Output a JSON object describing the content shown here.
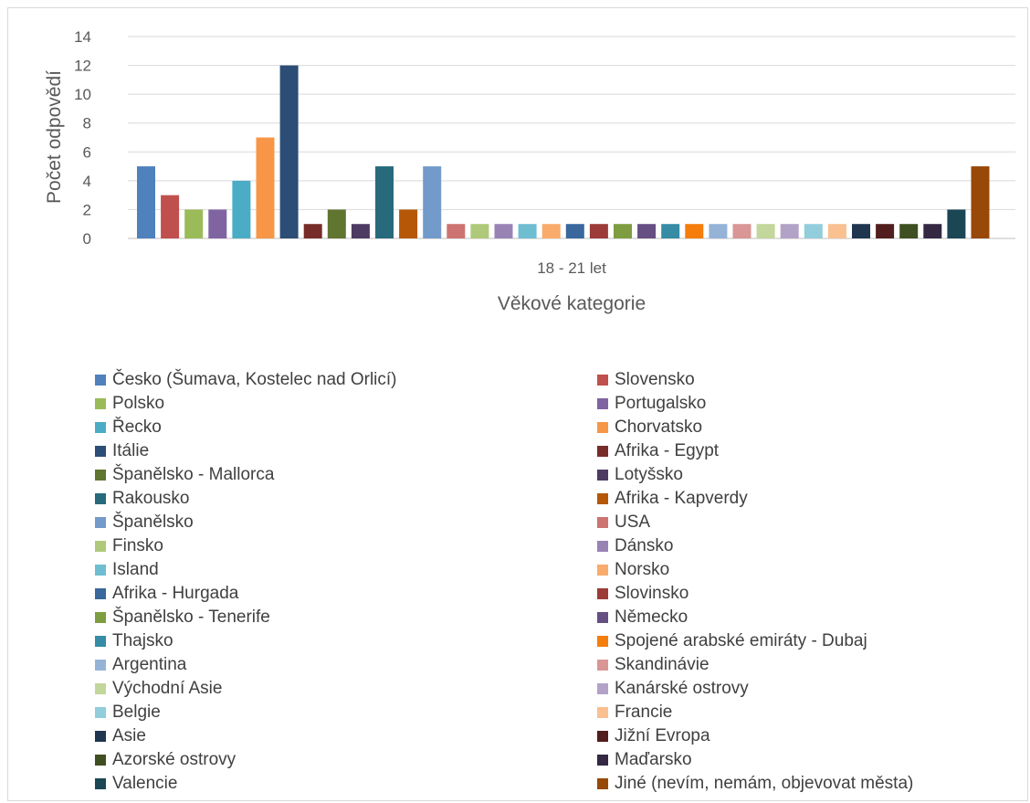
{
  "chart_data": {
    "type": "bar",
    "categories": [
      "18 - 21 let"
    ],
    "xlabel": "Věkové kategorie",
    "ylabel": "Počet odpovědí",
    "ylim": [
      0,
      14
    ],
    "yticks": [
      0,
      2,
      4,
      6,
      8,
      10,
      12,
      14
    ],
    "grid": true,
    "legend_position": "bottom",
    "series": [
      {
        "name": "Česko (Šumava, Kostelec nad Orlicí)",
        "values": [
          5
        ],
        "color": "#4f81bd"
      },
      {
        "name": "Slovensko",
        "values": [
          3
        ],
        "color": "#c0504d"
      },
      {
        "name": "Polsko",
        "values": [
          2
        ],
        "color": "#9bbb59"
      },
      {
        "name": "Portugalsko",
        "values": [
          2
        ],
        "color": "#8064a2"
      },
      {
        "name": "Řecko",
        "values": [
          4
        ],
        "color": "#4bacc6"
      },
      {
        "name": "Chorvatsko",
        "values": [
          7
        ],
        "color": "#f79646"
      },
      {
        "name": "Itálie",
        "values": [
          12
        ],
        "color": "#2c4d75"
      },
      {
        "name": "Afrika - Egypt",
        "values": [
          1
        ],
        "color": "#772c2a"
      },
      {
        "name": "Španělsko - Mallorca",
        "values": [
          2
        ],
        "color": "#5f7530"
      },
      {
        "name": "Lotyšsko",
        "values": [
          1
        ],
        "color": "#4d3b62"
      },
      {
        "name": "Rakousko",
        "values": [
          5
        ],
        "color": "#276a7c"
      },
      {
        "name": "Afrika - Kapverdy",
        "values": [
          2
        ],
        "color": "#b65708"
      },
      {
        "name": "Španělsko",
        "values": [
          5
        ],
        "color": "#729aca"
      },
      {
        "name": "USA",
        "values": [
          1
        ],
        "color": "#cd7371"
      },
      {
        "name": "Finsko",
        "values": [
          1
        ],
        "color": "#afc97a"
      },
      {
        "name": "Dánsko",
        "values": [
          1
        ],
        "color": "#9983b5"
      },
      {
        "name": "Island",
        "values": [
          1
        ],
        "color": "#6fbdd1"
      },
      {
        "name": "Norsko",
        "values": [
          1
        ],
        "color": "#f9ab6b"
      },
      {
        "name": "Afrika - Hurgada",
        "values": [
          1
        ],
        "color": "#3a679c"
      },
      {
        "name": "Slovinsko",
        "values": [
          1
        ],
        "color": "#9d3b38"
      },
      {
        "name": "Španělsko - Tenerife",
        "values": [
          1
        ],
        "color": "#7e9c40"
      },
      {
        "name": "Německo",
        "values": [
          1
        ],
        "color": "#664f83"
      },
      {
        "name": "Thajsko",
        "values": [
          1
        ],
        "color": "#358ca4"
      },
      {
        "name": "Spojené arabské emiráty - Dubaj",
        "values": [
          1
        ],
        "color": "#f47d0c"
      },
      {
        "name": "Argentina",
        "values": [
          1
        ],
        "color": "#95b3d7"
      },
      {
        "name": "Skandinávie",
        "values": [
          1
        ],
        "color": "#d99694"
      },
      {
        "name": "Východní Asie",
        "values": [
          1
        ],
        "color": "#c3d69b"
      },
      {
        "name": "Kanárské ostrovy",
        "values": [
          1
        ],
        "color": "#b3a2c7"
      },
      {
        "name": "Belgie",
        "values": [
          1
        ],
        "color": "#92cddc"
      },
      {
        "name": "Francie",
        "values": [
          1
        ],
        "color": "#fac090"
      },
      {
        "name": "Asie",
        "values": [
          1
        ],
        "color": "#1f3550"
      },
      {
        "name": "Jižní Evropa",
        "values": [
          1
        ],
        "color": "#511e1d"
      },
      {
        "name": "Azorské ostrovy",
        "values": [
          1
        ],
        "color": "#3f4f21"
      },
      {
        "name": "Maďarsko",
        "values": [
          1
        ],
        "color": "#342843"
      },
      {
        "name": "Valencie",
        "values": [
          2
        ],
        "color": "#1a4753"
      },
      {
        "name": "Jiné (nevím, nemám, objevovat města)",
        "values": [
          5
        ],
        "color": "#984807"
      }
    ]
  }
}
